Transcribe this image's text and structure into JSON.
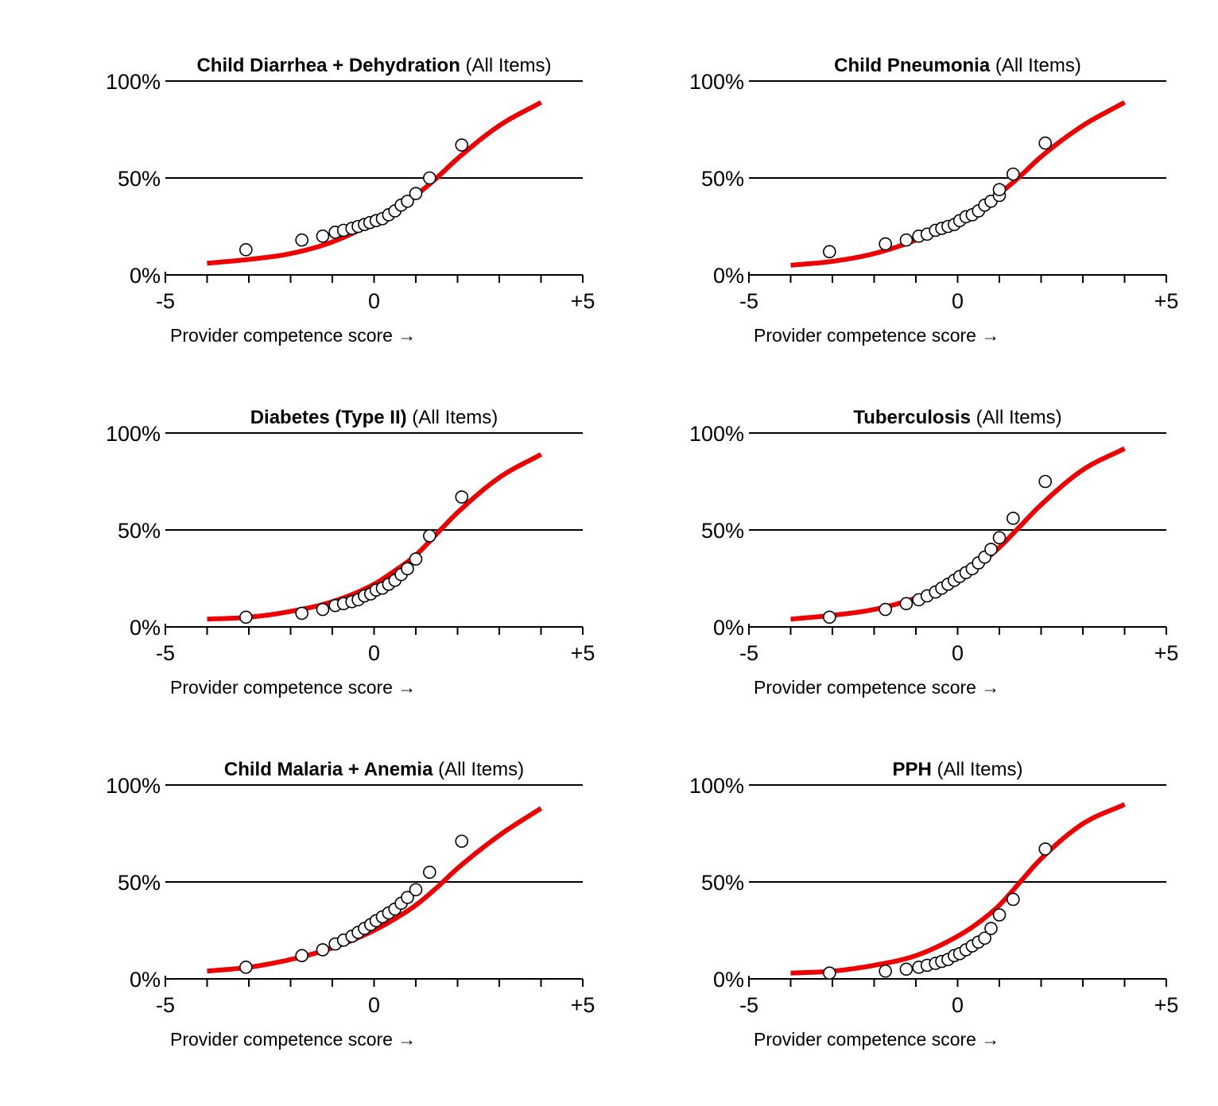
{
  "chart_data": [
    {
      "type": "scatter",
      "title_bold": "Child Diarrhea + Dehydration",
      "title_rest": " (All Items)",
      "xlabel": "Provider competence score →",
      "x_tick_labels": [
        "-5",
        "0",
        "+5"
      ],
      "y_tick_labels": [
        "0%",
        "50%",
        "100%"
      ],
      "xlim": [
        -5,
        5
      ],
      "ylim": [
        0,
        100
      ],
      "gridlines_y": [
        50,
        100
      ],
      "curve": {
        "color": "#ee0000",
        "x_range": [
          -4,
          4
        ],
        "points": [
          [
            -4,
            6
          ],
          [
            -3,
            8
          ],
          [
            -2,
            11
          ],
          [
            -1,
            17
          ],
          [
            0,
            27
          ],
          [
            0.5,
            33
          ],
          [
            1,
            41
          ],
          [
            1.5,
            50
          ],
          [
            2,
            60
          ],
          [
            3,
            77
          ],
          [
            4,
            89
          ]
        ]
      },
      "points": [
        [
          -3.07,
          13
        ],
        [
          -1.73,
          18
        ],
        [
          -1.23,
          20
        ],
        [
          -0.93,
          22
        ],
        [
          -0.73,
          23
        ],
        [
          -0.53,
          24
        ],
        [
          -0.38,
          25
        ],
        [
          -0.23,
          26
        ],
        [
          -0.1,
          27
        ],
        [
          0.05,
          28
        ],
        [
          0.2,
          29
        ],
        [
          0.35,
          31
        ],
        [
          0.5,
          33
        ],
        [
          0.65,
          36
        ],
        [
          0.8,
          38
        ],
        [
          1.0,
          42
        ],
        [
          1.33,
          50
        ],
        [
          2.1,
          67
        ]
      ]
    },
    {
      "type": "scatter",
      "title_bold": "Child Pneumonia",
      "title_rest": " (All Items)",
      "xlabel": "Provider competence score →",
      "x_tick_labels": [
        "-5",
        "0",
        "+5"
      ],
      "y_tick_labels": [
        "0%",
        "50%",
        "100%"
      ],
      "xlim": [
        -5,
        5
      ],
      "ylim": [
        0,
        100
      ],
      "gridlines_y": [
        50,
        100
      ],
      "curve": {
        "color": "#ee0000",
        "x_range": [
          -4,
          4
        ],
        "points": [
          [
            -4,
            5
          ],
          [
            -3,
            7
          ],
          [
            -2,
            11
          ],
          [
            -1,
            18
          ],
          [
            0,
            28
          ],
          [
            0.5,
            35
          ],
          [
            1,
            42
          ],
          [
            1.5,
            51
          ],
          [
            2,
            61
          ],
          [
            3,
            77
          ],
          [
            4,
            89
          ]
        ]
      },
      "points": [
        [
          -3.07,
          12
        ],
        [
          -1.73,
          16
        ],
        [
          -1.23,
          18
        ],
        [
          -0.93,
          20
        ],
        [
          -0.73,
          21
        ],
        [
          -0.53,
          23
        ],
        [
          -0.38,
          24
        ],
        [
          -0.23,
          25
        ],
        [
          -0.08,
          26
        ],
        [
          0.05,
          28
        ],
        [
          0.2,
          30
        ],
        [
          0.35,
          31
        ],
        [
          0.5,
          33
        ],
        [
          0.65,
          36
        ],
        [
          0.8,
          38
        ],
        [
          1.0,
          41
        ],
        [
          1.0,
          44
        ],
        [
          1.33,
          52
        ],
        [
          2.1,
          68
        ]
      ]
    },
    {
      "type": "scatter",
      "title_bold": "Diabetes (Type II)",
      "title_rest": " (All Items)",
      "xlabel": "Provider competence score →",
      "x_tick_labels": [
        "-5",
        "0",
        "+5"
      ],
      "y_tick_labels": [
        "0%",
        "50%",
        "100%"
      ],
      "xlim": [
        -5,
        5
      ],
      "ylim": [
        0,
        100
      ],
      "gridlines_y": [
        50,
        100
      ],
      "curve": {
        "color": "#ee0000",
        "x_range": [
          -4,
          4
        ],
        "points": [
          [
            -4,
            4
          ],
          [
            -3,
            5
          ],
          [
            -2,
            8
          ],
          [
            -1,
            13
          ],
          [
            0,
            22
          ],
          [
            0.5,
            29
          ],
          [
            1,
            37
          ],
          [
            1.5,
            48
          ],
          [
            2,
            59
          ],
          [
            3,
            77
          ],
          [
            4,
            89
          ]
        ]
      },
      "points": [
        [
          -3.07,
          5
        ],
        [
          -1.73,
          7
        ],
        [
          -1.23,
          9
        ],
        [
          -0.93,
          11
        ],
        [
          -0.73,
          12
        ],
        [
          -0.53,
          13
        ],
        [
          -0.38,
          14
        ],
        [
          -0.23,
          16
        ],
        [
          -0.08,
          17
        ],
        [
          0.05,
          19
        ],
        [
          0.2,
          20
        ],
        [
          0.35,
          22
        ],
        [
          0.5,
          24
        ],
        [
          0.65,
          27
        ],
        [
          0.8,
          30
        ],
        [
          1.0,
          35
        ],
        [
          1.33,
          47
        ],
        [
          2.1,
          67
        ]
      ]
    },
    {
      "type": "scatter",
      "title_bold": "Tuberculosis",
      "title_rest": " (All Items)",
      "xlabel": "Provider competence score →",
      "x_tick_labels": [
        "-5",
        "0",
        "+5"
      ],
      "y_tick_labels": [
        "0%",
        "50%",
        "100%"
      ],
      "xlim": [
        -5,
        5
      ],
      "ylim": [
        0,
        100
      ],
      "gridlines_y": [
        50,
        100
      ],
      "curve": {
        "color": "#ee0000",
        "x_range": [
          -4,
          4
        ],
        "points": [
          [
            -4,
            4
          ],
          [
            -3,
            6
          ],
          [
            -2,
            9
          ],
          [
            -1,
            15
          ],
          [
            0,
            25
          ],
          [
            0.5,
            32
          ],
          [
            1,
            41
          ],
          [
            1.5,
            52
          ],
          [
            2,
            63
          ],
          [
            3,
            81
          ],
          [
            4,
            92
          ]
        ]
      },
      "points": [
        [
          -3.07,
          5
        ],
        [
          -1.73,
          9
        ],
        [
          -1.23,
          12
        ],
        [
          -0.93,
          14
        ],
        [
          -0.73,
          16
        ],
        [
          -0.53,
          18
        ],
        [
          -0.38,
          20
        ],
        [
          -0.23,
          22
        ],
        [
          -0.08,
          24
        ],
        [
          0.05,
          26
        ],
        [
          0.2,
          28
        ],
        [
          0.35,
          30
        ],
        [
          0.5,
          33
        ],
        [
          0.65,
          36
        ],
        [
          0.8,
          40
        ],
        [
          1.0,
          46
        ],
        [
          1.33,
          56
        ],
        [
          2.1,
          75
        ]
      ]
    },
    {
      "type": "scatter",
      "title_bold": "Child Malaria + Anemia",
      "title_rest": " (All Items)",
      "xlabel": "Provider competence score →",
      "x_tick_labels": [
        "-5",
        "0",
        "+5"
      ],
      "y_tick_labels": [
        "0%",
        "50%",
        "100%"
      ],
      "xlim": [
        -5,
        5
      ],
      "ylim": [
        0,
        100
      ],
      "gridlines_y": [
        50,
        100
      ],
      "curve": {
        "color": "#ee0000",
        "x_range": [
          -4,
          4
        ],
        "points": [
          [
            -4,
            4
          ],
          [
            -3,
            6
          ],
          [
            -2,
            10
          ],
          [
            -1,
            16
          ],
          [
            0,
            25
          ],
          [
            0.5,
            31
          ],
          [
            1,
            38
          ],
          [
            1.5,
            47
          ],
          [
            2,
            57
          ],
          [
            3,
            74
          ],
          [
            4,
            88
          ]
        ]
      },
      "points": [
        [
          -3.07,
          6
        ],
        [
          -1.73,
          12
        ],
        [
          -1.23,
          15
        ],
        [
          -0.93,
          18
        ],
        [
          -0.73,
          20
        ],
        [
          -0.53,
          22
        ],
        [
          -0.38,
          24
        ],
        [
          -0.23,
          26
        ],
        [
          -0.08,
          28
        ],
        [
          0.05,
          30
        ],
        [
          0.2,
          32
        ],
        [
          0.35,
          34
        ],
        [
          0.5,
          36
        ],
        [
          0.65,
          39
        ],
        [
          0.8,
          42
        ],
        [
          1.0,
          46
        ],
        [
          1.33,
          55
        ],
        [
          2.1,
          71
        ]
      ]
    },
    {
      "type": "scatter",
      "title_bold": "PPH",
      "title_rest": " (All Items)",
      "xlabel": "Provider competence score →",
      "x_tick_labels": [
        "-5",
        "0",
        "+5"
      ],
      "y_tick_labels": [
        "0%",
        "50%",
        "100%"
      ],
      "xlim": [
        -5,
        5
      ],
      "ylim": [
        0,
        100
      ],
      "gridlines_y": [
        50,
        100
      ],
      "curve": {
        "color": "#ee0000",
        "x_range": [
          -4,
          4
        ],
        "points": [
          [
            -4,
            3
          ],
          [
            -3,
            4
          ],
          [
            -2,
            7
          ],
          [
            -1,
            12
          ],
          [
            0,
            22
          ],
          [
            0.5,
            29
          ],
          [
            1,
            38
          ],
          [
            1.5,
            50
          ],
          [
            2,
            62
          ],
          [
            3,
            80
          ],
          [
            4,
            90
          ]
        ]
      },
      "points": [
        [
          -3.07,
          3
        ],
        [
          -1.73,
          4
        ],
        [
          -1.23,
          5
        ],
        [
          -0.93,
          6
        ],
        [
          -0.73,
          7
        ],
        [
          -0.53,
          8
        ],
        [
          -0.38,
          9
        ],
        [
          -0.23,
          10
        ],
        [
          -0.08,
          12
        ],
        [
          0.05,
          13
        ],
        [
          0.2,
          15
        ],
        [
          0.35,
          17
        ],
        [
          0.5,
          19
        ],
        [
          0.65,
          21
        ],
        [
          0.8,
          26
        ],
        [
          1.0,
          33
        ],
        [
          1.33,
          41
        ],
        [
          2.1,
          67
        ]
      ]
    }
  ]
}
